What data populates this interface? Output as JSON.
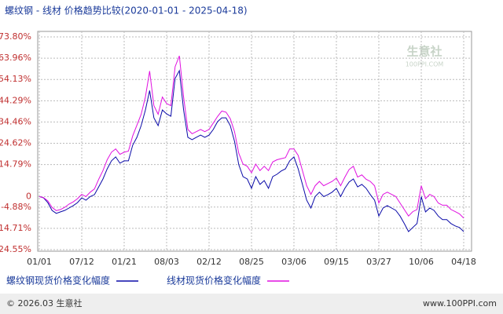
{
  "chart_data": {
    "type": "line",
    "title": "螺纹钢 - 线材 价格趋势比较(2020-01-01 - 2025-04-18)",
    "watermark": [
      "生意社",
      "100PPI.COM"
    ],
    "footer_left": "© 2026.03 生意社",
    "footer_right": "www.100PPI.com",
    "categories": [
      "01/01",
      null,
      null,
      null,
      null,
      null,
      null,
      null,
      null,
      null,
      "07/12",
      null,
      null,
      null,
      null,
      null,
      null,
      null,
      null,
      null,
      "01/21",
      null,
      null,
      null,
      null,
      null,
      null,
      null,
      null,
      null,
      "08/03",
      null,
      null,
      null,
      null,
      null,
      null,
      null,
      null,
      null,
      "02/12",
      null,
      null,
      null,
      null,
      null,
      null,
      null,
      null,
      null,
      "08/25",
      null,
      null,
      null,
      null,
      null,
      null,
      null,
      null,
      null,
      "03/06",
      null,
      null,
      null,
      null,
      null,
      null,
      null,
      null,
      null,
      "09/15",
      null,
      null,
      null,
      null,
      null,
      null,
      null,
      null,
      null,
      "03/27",
      null,
      null,
      null,
      null,
      null,
      null,
      null,
      null,
      null,
      "10/06",
      null,
      null,
      null,
      null,
      null,
      null,
      null,
      null,
      null,
      "04/18"
    ],
    "series": [
      {
        "name": "螺纹钢现货价格变化幅度",
        "color": "#0a0aa8",
        "values": [
          0,
          -0.6,
          -2.8,
          -6.4,
          -7.8,
          -7.1,
          -6.4,
          -5.3,
          -4.2,
          -2.8,
          -0.6,
          -1.7,
          0,
          0.9,
          4.5,
          8.1,
          12.8,
          16.5,
          18.3,
          15.4,
          16.5,
          16.5,
          23.7,
          27.4,
          32.8,
          40,
          49,
          36.4,
          32.8,
          40,
          38.2,
          37.1,
          54.6,
          58.2,
          40,
          27.4,
          26.3,
          27.4,
          28.4,
          27.4,
          28.4,
          31,
          34.6,
          36.4,
          36.4,
          32.8,
          25.5,
          14.7,
          9.2,
          8.1,
          3.8,
          9.2,
          5.6,
          7.4,
          3.8,
          9.2,
          10.3,
          11.8,
          12.8,
          16.5,
          18.3,
          12.8,
          5.6,
          -1.7,
          -5.3,
          0,
          2,
          0,
          0.9,
          2,
          3.8,
          0,
          3.8,
          6.7,
          8.1,
          4.5,
          5.6,
          3.8,
          0.9,
          -1.7,
          -9,
          -5.3,
          -4.2,
          -5.3,
          -6.4,
          -9,
          -12.5,
          -16.2,
          -14.3,
          -12.5,
          0,
          -7.1,
          -5.3,
          -6.4,
          -9,
          -10.7,
          -10.7,
          -12.5,
          -13.6,
          -14.3,
          -16.2
        ]
      },
      {
        "name": "线材现货价格变化幅度",
        "color": "#e010e0",
        "values": [
          0,
          -0.5,
          -2,
          -5,
          -6.5,
          -6,
          -5,
          -3.5,
          -2.5,
          -1,
          1,
          0,
          2,
          3.5,
          8,
          12,
          17,
          20.5,
          22,
          19.5,
          20.5,
          21,
          28,
          33,
          38,
          46,
          58,
          42,
          38,
          46,
          43,
          42,
          60,
          65,
          46,
          31,
          29,
          30,
          31,
          30,
          31,
          34,
          37,
          39.5,
          39,
          36,
          30,
          20,
          15,
          14,
          11,
          15,
          12,
          14,
          12,
          16,
          17,
          17.5,
          18,
          22,
          22,
          19,
          12,
          5,
          1,
          5,
          7,
          5,
          6,
          7,
          8.5,
          5,
          9,
          12.5,
          14,
          9,
          10,
          8,
          7,
          5,
          -3,
          1,
          2,
          1,
          0,
          -3,
          -6,
          -9,
          -7,
          -6,
          5,
          -1,
          1,
          0,
          -3,
          -4,
          -4,
          -6,
          -7,
          -8,
          -10
        ]
      }
    ],
    "ylim": [
      -24.55,
      73.8
    ],
    "yticks": [
      {
        "value": 73.8,
        "label": "73.80%"
      },
      {
        "value": 63.96,
        "label": "63.96%"
      },
      {
        "value": 54.13,
        "label": "54.13%"
      },
      {
        "value": 44.29,
        "label": "44.29%"
      },
      {
        "value": 34.46,
        "label": "34.46%"
      },
      {
        "value": 24.62,
        "label": "24.62%"
      },
      {
        "value": 14.79,
        "label": "14.79%"
      },
      0,
      {
        "value": -4.88,
        "label": "-4.88%"
      },
      {
        "value": -14.71,
        "label": "-14.71%"
      },
      {
        "value": -24.55,
        "label": "-24.55%"
      }
    ],
    "grid": true
  }
}
